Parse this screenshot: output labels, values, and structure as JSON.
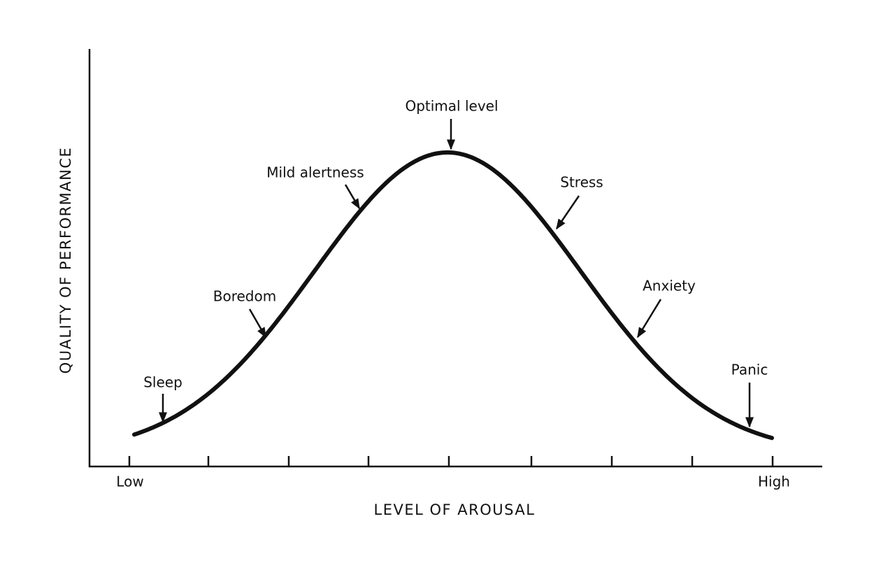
{
  "axes": {
    "y_label": "QUALITY OF PERFORMANCE",
    "x_label": "LEVEL OF AROUSAL",
    "x_low": "Low",
    "x_high": "High"
  },
  "annotations": [
    {
      "label": "Sleep"
    },
    {
      "label": "Boredom"
    },
    {
      "label": "Mild alertness"
    },
    {
      "label": "Optimal level"
    },
    {
      "label": "Stress"
    },
    {
      "label": "Anxiety"
    },
    {
      "label": "Panic"
    }
  ]
}
